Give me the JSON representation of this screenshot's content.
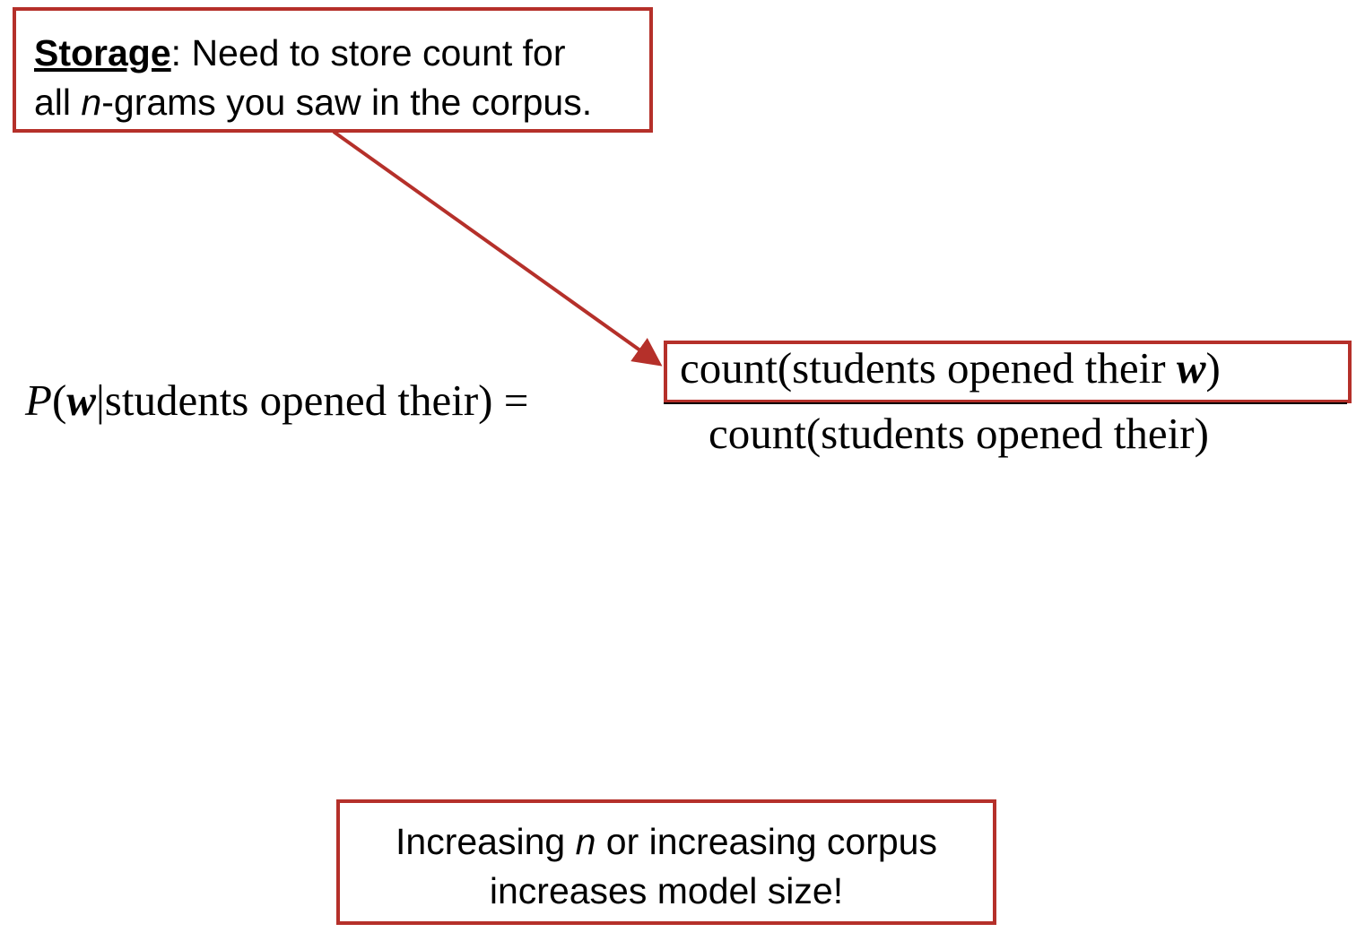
{
  "storage_callout": {
    "lead": "Storage",
    "line1_rest": ": Need to store count for",
    "line2_pre": "all ",
    "line2_n": "n",
    "line2_post": "-grams you saw in the corpus."
  },
  "formula": {
    "lhs_p": "P",
    "lhs_open": "(",
    "lhs_w": "w",
    "lhs_rest": "|students opened their) =",
    "numerator_pre": "count(students opened their ",
    "numerator_w": "w",
    "numerator_close": ")",
    "denominator": "count(students opened their)"
  },
  "size_callout": {
    "pre": "Increasing ",
    "n": "n",
    "post": " or increasing corpus",
    "line2": "increases model size!"
  },
  "colors": {
    "callout_border": "#b5302a",
    "arrow": "#b5302a"
  }
}
